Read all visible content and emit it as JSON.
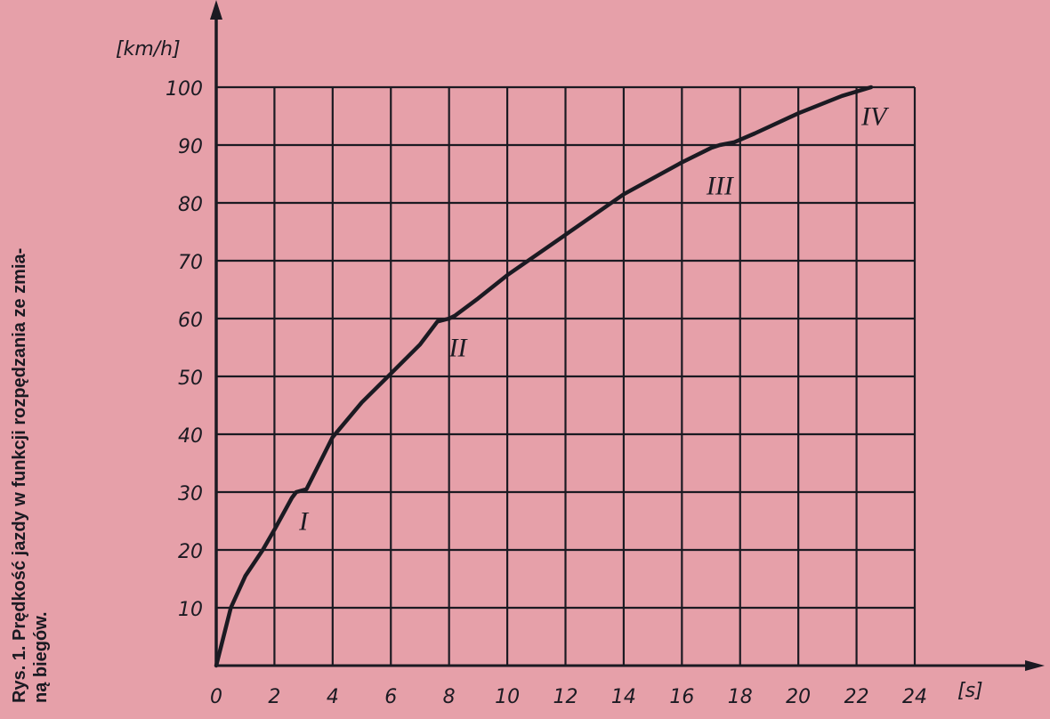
{
  "caption": {
    "line1": "Rys. 1.  Prędkość jazdy w funkcji rozpędzania ze zmia-",
    "line2": "ną biegów."
  },
  "chart_data": {
    "type": "line",
    "title": "",
    "xlabel": "[s]",
    "ylabel": "[km/h]",
    "xlim": [
      0,
      24
    ],
    "ylim": [
      0,
      100
    ],
    "grid": true,
    "x_ticks": [
      "0",
      "2",
      "4",
      "6",
      "8",
      "10",
      "12",
      "14",
      "16",
      "18",
      "20",
      "22",
      "24"
    ],
    "y_ticks": [
      "10",
      "20",
      "30",
      "40",
      "50",
      "60",
      "70",
      "80",
      "90",
      "100"
    ],
    "series": [
      {
        "x": [
          0,
          0.5,
          1.0,
          1.6,
          2.0,
          2.6,
          2.75,
          3.1,
          4.0,
          5.0,
          6.0,
          7.0,
          7.6,
          8.0,
          8.2,
          9.0,
          10.0,
          12.0,
          14.0,
          16.0,
          17.0,
          17.3,
          17.8,
          18.5,
          20.0,
          21.5,
          22.5
        ],
        "y": [
          0,
          10,
          15.5,
          20,
          23.5,
          29,
          30,
          30.5,
          39.5,
          45.5,
          50.5,
          55.5,
          59.5,
          60,
          60.5,
          63.5,
          67.5,
          74.5,
          81.5,
          87,
          89.5,
          90,
          90.5,
          92,
          95.5,
          98.5,
          100
        ]
      }
    ],
    "annotations": [
      {
        "text": "I",
        "x": 3.0,
        "y": 25
      },
      {
        "text": "II",
        "x": 8.3,
        "y": 55
      },
      {
        "text": "III",
        "x": 17.3,
        "y": 83
      },
      {
        "text": "IV",
        "x": 22.6,
        "y": 95
      }
    ],
    "colors": {
      "background": "#e6a0a9",
      "ink": "#1b1a22"
    }
  }
}
